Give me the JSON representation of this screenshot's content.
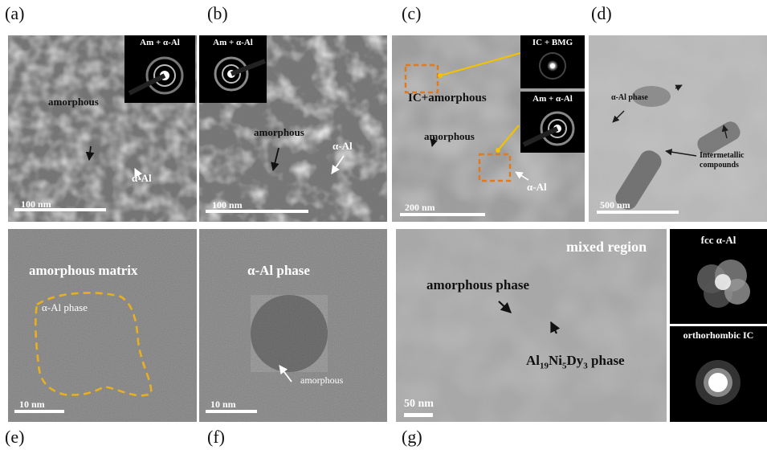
{
  "panel_labels": {
    "a": "(a)",
    "b": "(b)",
    "c": "(c)",
    "d": "(d)",
    "e": "(e)",
    "f": "(f)",
    "g": "(g)"
  },
  "a": {
    "inset": "Am + α-Al",
    "amorphous": "amorphous",
    "alpha_al": "α-Al",
    "scale": "100 nm"
  },
  "b": {
    "inset": "Am + α-Al",
    "amorphous": "amorphous",
    "alpha_al": "α-Al",
    "scale": "100 nm"
  },
  "c": {
    "inset_top": "IC + BMG",
    "inset_bottom": "Am + α-Al",
    "ic_amorphous": "IC+amorphous",
    "amorphous": "amorphous",
    "alpha_al": "α-Al",
    "scale": "200 nm"
  },
  "d": {
    "alpha_phase": "α-Al phase",
    "intermetallic_line1": "Intermetallic",
    "intermetallic_line2": "compounds",
    "scale": "500 nm"
  },
  "e": {
    "matrix": "amorphous matrix",
    "phase": "α-Al phase",
    "scale": "10 nm"
  },
  "f": {
    "phase": "α-Al phase",
    "amorphous": "amorphous",
    "scale": "10 nm"
  },
  "g": {
    "mixed": "mixed region",
    "amorphous_phase": "amorphous phase",
    "compound_prefix": "Al",
    "compound_sub1": "19",
    "compound_mid1": "Ni",
    "compound_sub2": "5",
    "compound_mid2": "Dy",
    "compound_sub3": "3",
    "compound_suffix": " phase",
    "scale": "50 nm",
    "inset_top": "fcc α-Al",
    "inset_bottom": "orthorhombic IC"
  },
  "colors": {
    "dashed_outline": "#e8b020",
    "box": "#e07a1e",
    "arrow": "#f2c200"
  }
}
